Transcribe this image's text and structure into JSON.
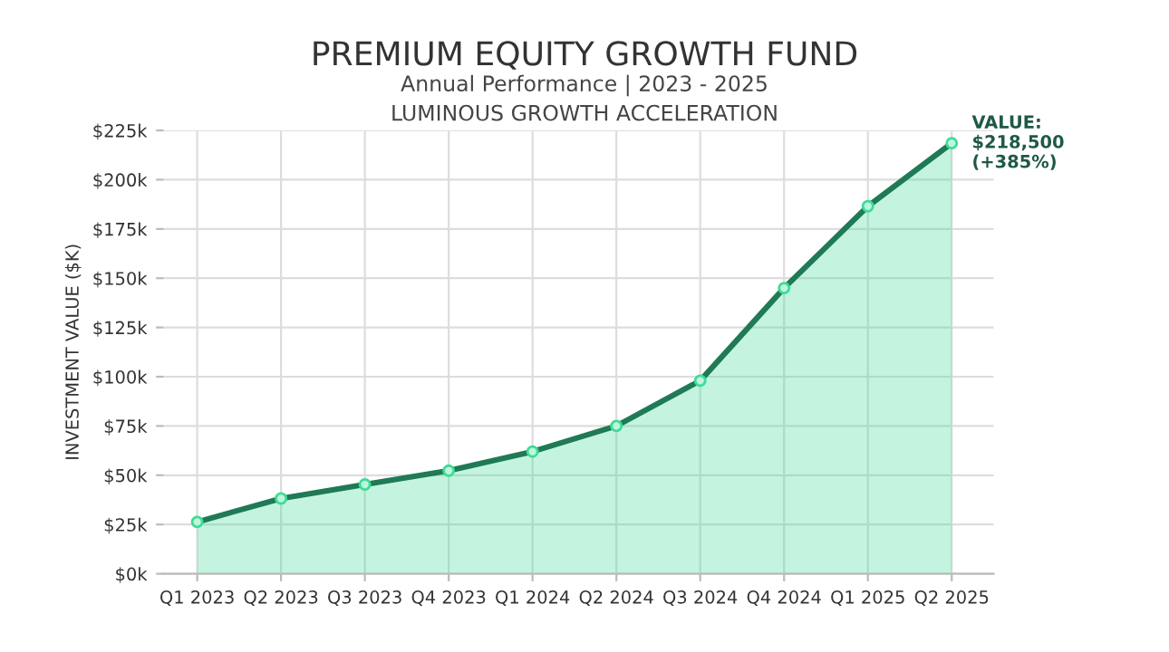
{
  "chart_data": {
    "type": "area",
    "title": "PREMIUM EQUITY GROWTH FUND",
    "subtitle": "Annual Performance | 2023 - 2025\nLUMINOUS GROWTH ACCELERATION",
    "ylabel": "INVESTMENT VALUE ($K)",
    "categories": [
      "Q1 2023",
      "Q2 2023",
      "Q3 2023",
      "Q4 2023",
      "Q1 2024",
      "Q2 2024",
      "Q3 2024",
      "Q4 2024",
      "Q1 2025",
      "Q2 2025"
    ],
    "series": [
      {
        "color": "#1f7a55",
        "values": [
          26.3,
          38.2,
          45.3,
          52.3,
          62,
          75,
          98,
          145,
          186.5,
          218.5
        ]
      }
    ],
    "ylim": [
      0,
      225
    ],
    "yticks": [
      {
        "value": 0,
        "label": "$0k"
      },
      {
        "value": 25,
        "label": "$25k"
      },
      {
        "value": 50,
        "label": "$50k"
      },
      {
        "value": 75,
        "label": "$75k"
      },
      {
        "value": 100,
        "label": "$100k"
      },
      {
        "value": 125,
        "label": "$125k"
      },
      {
        "value": 150,
        "label": "$150k"
      },
      {
        "value": 175,
        "label": "$175k"
      },
      {
        "value": 200,
        "label": "$200k"
      },
      {
        "value": 225,
        "label": "$225k"
      }
    ],
    "annotations": [
      {
        "text": "VALUE:\n$218,500\n(+385%)",
        "x": "Q2 2025",
        "y": 218.5
      }
    ],
    "grid": true,
    "marker": "circle",
    "line_style": "solid"
  }
}
